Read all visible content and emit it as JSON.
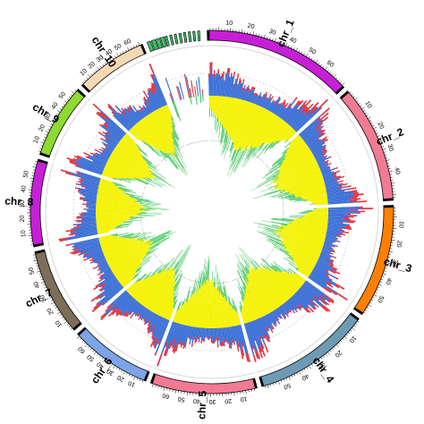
{
  "chart_data": {
    "type": "circos",
    "chromosomes": [
      {
        "name": "chr_1",
        "color": "#c71fd6",
        "length": 310,
        "tick_labels": [
          "10",
          "20",
          "30",
          "40",
          "50",
          "60"
        ]
      },
      {
        "name": "chr_2",
        "color": "#f27a93",
        "length": 245,
        "tick_labels": [
          "10",
          "20",
          "30",
          "40"
        ]
      },
      {
        "name": "chr_3",
        "color": "#ff8000",
        "length": 235,
        "tick_labels": [
          "10",
          "20",
          "30",
          "40",
          "50"
        ]
      },
      {
        "name": "chr_4",
        "color": "#6e9bb4",
        "length": 245,
        "tick_labels": [
          "10",
          "20",
          "30",
          "40",
          "50"
        ]
      },
      {
        "name": "chr_5",
        "color": "#f27a93",
        "length": 220,
        "tick_labels": [
          "10",
          "20",
          "30",
          "40",
          "50",
          "60"
        ]
      },
      {
        "name": "chr_6",
        "color": "#7ea4e8",
        "length": 170,
        "tick_labels": [
          "10",
          "20",
          "30",
          "40",
          "50",
          "60"
        ]
      },
      {
        "name": "chr_7",
        "color": "#7d6e5a",
        "length": 180,
        "tick_labels": [
          "10",
          "20",
          "30",
          "40",
          "50"
        ]
      },
      {
        "name": "chr_8",
        "color": "#c71fd6",
        "length": 180,
        "tick_labels": [
          "10",
          "20",
          "30",
          "40",
          "50"
        ]
      },
      {
        "name": "chr_9",
        "color": "#8fd933",
        "length": 155,
        "tick_labels": [
          "10",
          "20",
          "30",
          "40",
          "50"
        ]
      },
      {
        "name": "chr_10",
        "color": "#f6d8b5",
        "length": 150,
        "tick_labels": [
          "10",
          "20",
          "30",
          "40",
          "50",
          "60"
        ]
      },
      {
        "name": "",
        "color": "#3fbf6a",
        "length": 115,
        "tick_labels": []
      }
    ],
    "series": [
      {
        "color": "#e8323c"
      },
      {
        "color": "#3a6fd6"
      },
      {
        "color": "#f5f200"
      },
      {
        "color": "#2fbf4f"
      }
    ],
    "grid": true
  }
}
